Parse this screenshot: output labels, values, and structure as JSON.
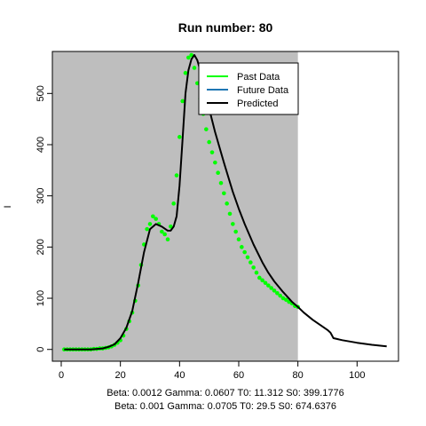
{
  "chart_data": {
    "type": "line",
    "title": "Run number:  80",
    "xlabel": "",
    "ylabel": "I",
    "xlim": [
      -3,
      114
    ],
    "ylim": [
      -23,
      582
    ],
    "x_ticks": [
      0,
      20,
      40,
      60,
      80,
      100
    ],
    "y_ticks": [
      0,
      100,
      200,
      300,
      400,
      500
    ],
    "shaded_region": {
      "x": [
        -3,
        80
      ],
      "color": "#bebebe"
    },
    "grid": false,
    "legend_position": "top-right",
    "legend": [
      {
        "label": "Past Data",
        "color": "#00ff00"
      },
      {
        "label": "Future Data",
        "color": "#1f77b4"
      },
      {
        "label": "Predicted",
        "color": "#000000"
      }
    ],
    "subtitles": [
      "Beta:  0.0012 Gamma:  0.0607 T0:  11.312 S0:  399.1776",
      "Beta:  0.001 Gamma:  0.0705 T0:  29.5 S0:  674.6376"
    ],
    "series": [
      {
        "name": "Past Data",
        "kind": "points",
        "color": "#00ff00",
        "x": [
          1,
          2,
          3,
          4,
          5,
          6,
          7,
          8,
          9,
          10,
          11,
          12,
          13,
          14,
          15,
          16,
          17,
          18,
          19,
          20,
          21,
          22,
          23,
          24,
          25,
          26,
          27,
          28,
          29,
          30,
          31,
          32,
          33,
          34,
          35,
          36,
          37,
          38,
          39,
          40,
          41,
          42,
          43,
          44,
          45,
          46,
          47,
          48,
          49,
          50,
          51,
          52,
          53,
          54,
          55,
          56,
          57,
          58,
          59,
          60,
          61,
          62,
          63,
          64,
          65,
          66,
          67,
          68,
          69,
          70,
          71,
          72,
          73,
          74,
          75,
          76,
          77,
          78,
          79,
          80
        ],
        "y": [
          0,
          0,
          0,
          0,
          0,
          0,
          0,
          0,
          0,
          0,
          1,
          1,
          2,
          2,
          3,
          4,
          6,
          9,
          13,
          18,
          27,
          40,
          55,
          72,
          95,
          125,
          165,
          205,
          235,
          245,
          260,
          255,
          245,
          230,
          225,
          215,
          240,
          285,
          340,
          415,
          485,
          540,
          570,
          575,
          550,
          520,
          490,
          460,
          430,
          405,
          385,
          365,
          345,
          325,
          305,
          285,
          265,
          245,
          230,
          215,
          200,
          190,
          180,
          170,
          160,
          150,
          140,
          135,
          130,
          125,
          120,
          115,
          110,
          105,
          100,
          97,
          93,
          90,
          85,
          83
        ]
      },
      {
        "name": "Future Data",
        "kind": "points",
        "color": "#1f77b4",
        "x": [],
        "y": []
      },
      {
        "name": "Predicted",
        "kind": "line",
        "color": "#000000",
        "x": [
          1,
          5,
          10,
          14,
          16,
          18,
          20,
          22,
          24,
          26,
          28,
          30,
          32,
          34,
          36,
          37,
          38,
          39,
          40,
          41,
          42,
          43,
          44,
          45,
          46,
          47,
          48,
          50,
          52,
          55,
          58,
          60,
          62,
          65,
          68,
          70,
          72,
          75,
          78,
          80,
          82,
          85,
          88,
          90,
          91,
          92,
          95,
          100,
          105,
          110
        ],
        "y": [
          0,
          0,
          0,
          2,
          5,
          10,
          22,
          42,
          75,
          130,
          190,
          235,
          245,
          240,
          232,
          232,
          240,
          260,
          320,
          410,
          500,
          545,
          567,
          575,
          565,
          545,
          515,
          470,
          425,
          365,
          308,
          275,
          245,
          205,
          170,
          150,
          133,
          112,
          93,
          83,
          72,
          58,
          46,
          38,
          33,
          22,
          18,
          13,
          9,
          6
        ]
      }
    ]
  }
}
